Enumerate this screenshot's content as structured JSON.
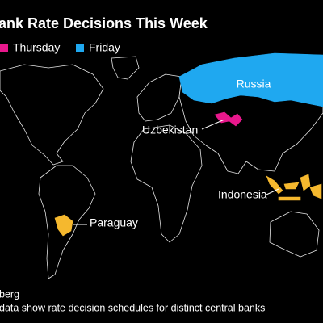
{
  "header": {
    "title": "ank Rate Decisions This Week"
  },
  "legend": {
    "items": [
      {
        "label": "Thursday",
        "color": "#e8188c"
      },
      {
        "label": "Friday",
        "color": "#1fa8f0"
      }
    ]
  },
  "map": {
    "countries": [
      {
        "label": "Russia",
        "color": "#1fa8f0"
      },
      {
        "label": "Uzbekistan",
        "color": "#e8188c"
      },
      {
        "label": "Indonesia",
        "color": "#f5b82e"
      },
      {
        "label": "Paraguay",
        "color": "#f5b82e"
      }
    ]
  },
  "footer": {
    "source": "berg",
    "note": "data show rate decision schedules for distinct central banks"
  }
}
